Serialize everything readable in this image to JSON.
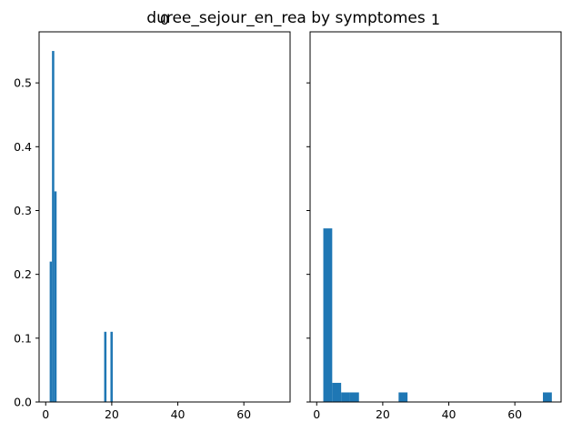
{
  "figure": {
    "suptitle": "duree_sejour_en_rea by symptomes"
  },
  "chart_data": [
    {
      "type": "bar",
      "subplot_title": "0",
      "bar_color": "#1f77b4",
      "xlim": [
        -2,
        74
      ],
      "ylim": [
        0,
        0.58
      ],
      "xticks": [
        0,
        20,
        40,
        60
      ],
      "yticks": [
        0.0,
        0.1,
        0.2,
        0.3,
        0.4,
        0.5
      ],
      "ytick_labels": [
        "0.0",
        "0.1",
        "0.2",
        "0.3",
        "0.4",
        "0.5"
      ],
      "bin_width": 0.7,
      "bars": [
        {
          "x": 1.2,
          "height": 0.22
        },
        {
          "x": 1.9,
          "height": 0.55
        },
        {
          "x": 2.6,
          "height": 0.33
        },
        {
          "x": 17.7,
          "height": 0.11
        },
        {
          "x": 19.6,
          "height": 0.11
        }
      ]
    },
    {
      "type": "bar",
      "subplot_title": "1",
      "bar_color": "#1f77b4",
      "xlim": [
        -2,
        74
      ],
      "ylim": [
        0,
        0.58
      ],
      "xticks": [
        0,
        20,
        40,
        60
      ],
      "yticks": [
        0.0,
        0.1,
        0.2,
        0.3,
        0.4,
        0.5
      ],
      "ytick_labels": [],
      "bin_width": 2.7,
      "bars": [
        {
          "x": 2.0,
          "height": 0.272
        },
        {
          "x": 4.7,
          "height": 0.03
        },
        {
          "x": 7.4,
          "height": 0.015
        },
        {
          "x": 10.1,
          "height": 0.015
        },
        {
          "x": 24.8,
          "height": 0.015
        },
        {
          "x": 68.5,
          "height": 0.015
        }
      ]
    }
  ]
}
